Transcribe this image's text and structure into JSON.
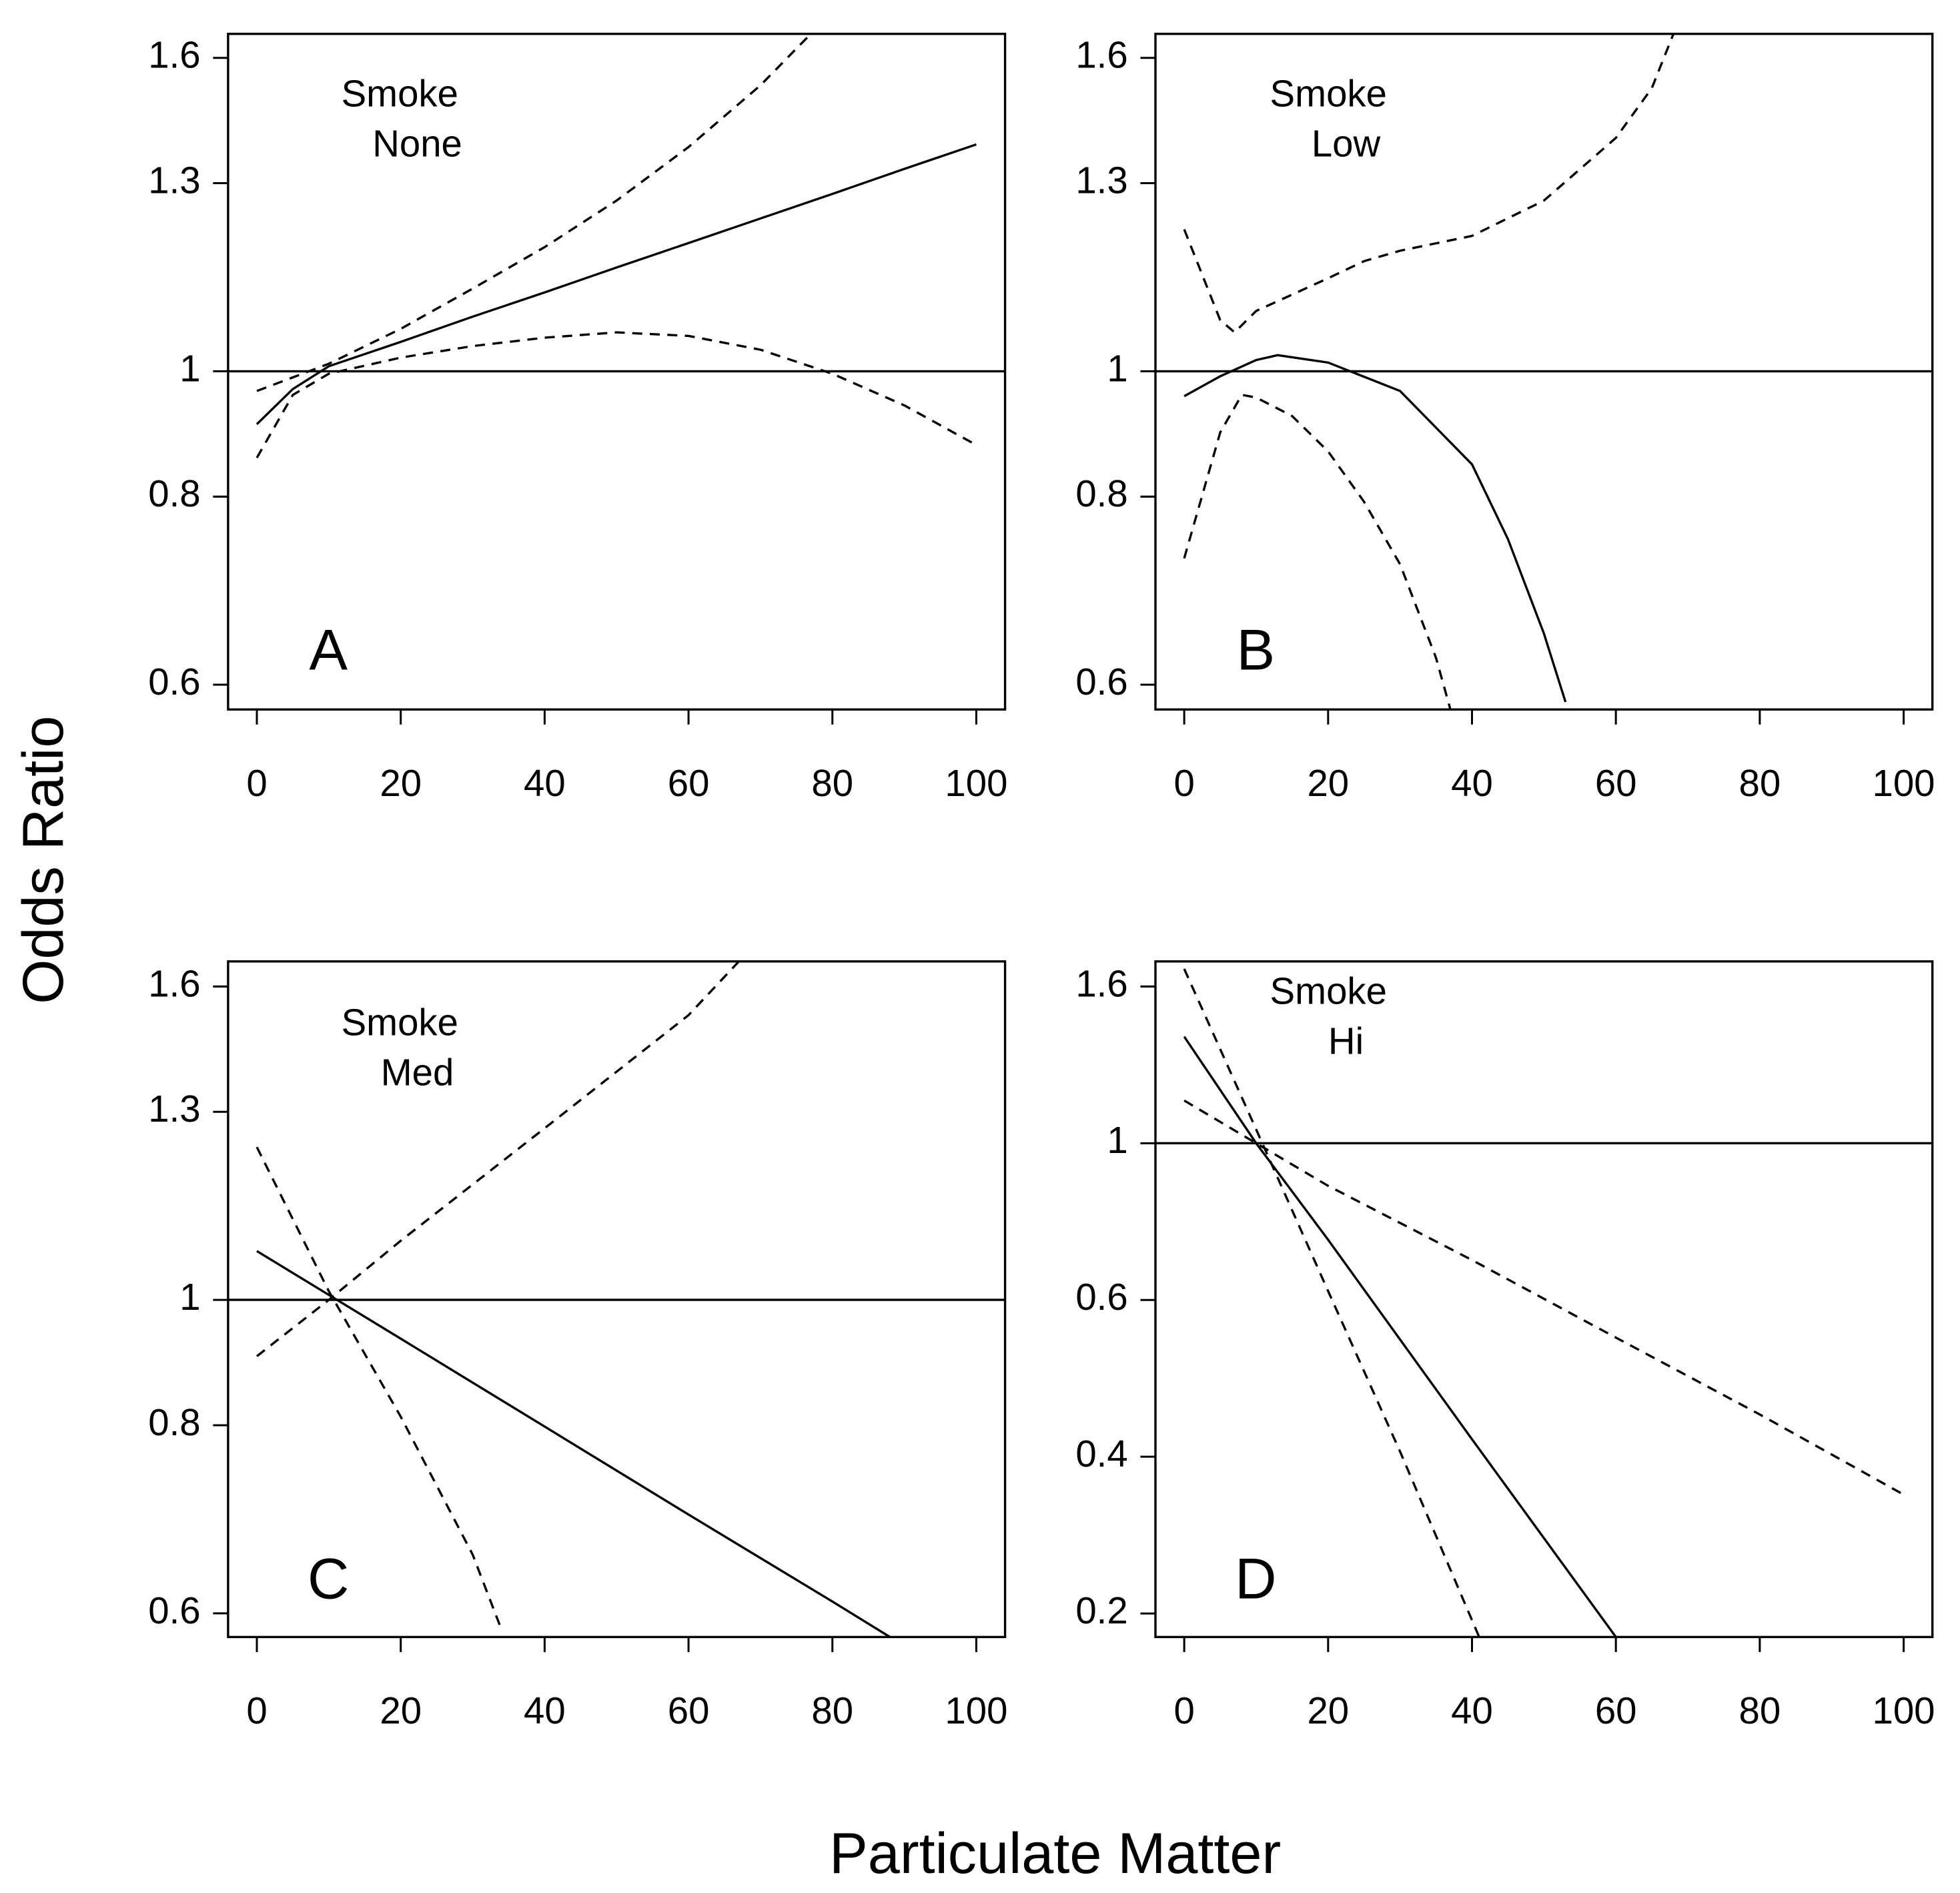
{
  "xlabel": "Particulate Matter",
  "ylabel": "Odds Ratio",
  "chart_data": [
    {
      "type": "line",
      "panel_label": "A",
      "annotations": [
        "Smoke",
        "None"
      ],
      "ylog": true,
      "reference_line": 1,
      "xlim": [
        -4,
        104
      ],
      "xticks": [
        0,
        20,
        40,
        60,
        80,
        100
      ],
      "ylim": [
        0.583,
        1.713
      ],
      "yticks": [
        {
          "value": 0.6065,
          "label": "0.6"
        },
        {
          "value": 0.8187,
          "label": "0.8"
        },
        1,
        {
          "value": 1.3499,
          "label": "1.3"
        },
        {
          "value": 1.6487,
          "label": "1.6"
        }
      ],
      "series": [
        {
          "style": "solid",
          "x": [
            0,
            5,
            10,
            20,
            30,
            40,
            50,
            60,
            70,
            80,
            90,
            100
          ],
          "values": [
            0.919,
            0.972,
            1.008,
            1.048,
            1.091,
            1.134,
            1.18,
            1.227,
            1.276,
            1.327,
            1.381,
            1.436
          ]
        },
        {
          "style": "dashed",
          "x": [
            0,
            10,
            20,
            30,
            40,
            50,
            60,
            70,
            77
          ],
          "values": [
            0.969,
            1.012,
            1.07,
            1.141,
            1.219,
            1.313,
            1.43,
            1.578,
            1.713
          ]
        },
        {
          "style": "dashed",
          "x": [
            0,
            5,
            10,
            20,
            30,
            40,
            50,
            60,
            70,
            80,
            90,
            100
          ],
          "values": [
            0.871,
            0.963,
            0.996,
            1.022,
            1.041,
            1.055,
            1.064,
            1.058,
            1.035,
            0.996,
            0.947,
            0.889
          ]
        }
      ]
    },
    {
      "type": "line",
      "panel_label": "B",
      "annotations": [
        "Smoke",
        "Low"
      ],
      "ylog": true,
      "reference_line": 1,
      "xlim": [
        -4,
        104
      ],
      "xticks": [
        0,
        20,
        40,
        60,
        80,
        100
      ],
      "ylim": [
        0.583,
        1.713
      ],
      "yticks": [
        {
          "value": 0.6065,
          "label": "0.6"
        },
        {
          "value": 0.8187,
          "label": "0.8"
        },
        1,
        {
          "value": 1.3499,
          "label": "1.3"
        },
        {
          "value": 1.6487,
          "label": "1.6"
        }
      ],
      "series": [
        {
          "style": "solid",
          "x": [
            0,
            5,
            10,
            13,
            20,
            30,
            40,
            45,
            50,
            53
          ],
          "values": [
            0.961,
            0.992,
            1.018,
            1.026,
            1.014,
            0.969,
            0.862,
            0.765,
            0.658,
            0.59
          ]
        },
        {
          "style": "dashed",
          "x": [
            0,
            5,
            7,
            10,
            20,
            25,
            30,
            40,
            50,
            60,
            65,
            68
          ],
          "values": [
            1.254,
            1.085,
            1.064,
            1.101,
            1.16,
            1.192,
            1.212,
            1.241,
            1.313,
            1.451,
            1.571,
            1.713
          ]
        },
        {
          "style": "dashed",
          "x": [
            0,
            5,
            8,
            10,
            15,
            20,
            25,
            30,
            35,
            37
          ],
          "values": [
            0.742,
            0.907,
            0.963,
            0.959,
            0.931,
            0.88,
            0.812,
            0.735,
            0.633,
            0.583
          ]
        }
      ]
    },
    {
      "type": "line",
      "panel_label": "C",
      "annotations": [
        "Smoke",
        "Med"
      ],
      "ylog": true,
      "reference_line": 1,
      "xlim": [
        -4,
        104
      ],
      "xticks": [
        0,
        20,
        40,
        60,
        80,
        100
      ],
      "ylim": [
        0.584,
        1.716
      ],
      "yticks": [
        {
          "value": 0.6065,
          "label": "0.6"
        },
        {
          "value": 0.8187,
          "label": "0.8"
        },
        1,
        {
          "value": 1.3499,
          "label": "1.3"
        },
        {
          "value": 1.6487,
          "label": "1.6"
        }
      ],
      "series": [
        {
          "style": "solid",
          "x": [
            0,
            20,
            40,
            60,
            80,
            88
          ],
          "values": [
            1.081,
            0.94,
            0.817,
            0.71,
            0.618,
            0.584
          ]
        },
        {
          "style": "dashed",
          "x": [
            0,
            10,
            20,
            40,
            60,
            67
          ],
          "values": [
            0.914,
            1.0,
            1.099,
            1.315,
            1.575,
            1.716
          ]
        },
        {
          "style": "dashed",
          "x": [
            0,
            10,
            20,
            30,
            34
          ],
          "values": [
            1.276,
            1.014,
            0.83,
            0.666,
            0.591
          ]
        }
      ]
    },
    {
      "type": "line",
      "panel_label": "D",
      "annotations": [
        "Smoke",
        "Hi"
      ],
      "ylog": true,
      "reference_line": 1,
      "xlim": [
        -4,
        104
      ],
      "xticks": [
        0,
        20,
        40,
        60,
        80,
        100
      ],
      "ylim": [
        0.207,
        1.786
      ],
      "yticks": [
        {
          "value": 0.2231,
          "label": "0.2"
        },
        {
          "value": 0.3679,
          "label": "0.4"
        },
        {
          "value": 0.6065,
          "label": "0.6"
        },
        1,
        {
          "value": 1.6487,
          "label": "1.6"
        }
      ],
      "series": [
        {
          "style": "solid",
          "x": [
            0,
            10,
            20,
            40,
            60
          ],
          "values": [
            1.405,
            1.0,
            0.735,
            0.389,
            0.207
          ]
        },
        {
          "style": "dashed",
          "x": [
            0,
            10,
            20,
            40,
            60,
            80,
            100
          ],
          "values": [
            1.146,
            1.0,
            0.873,
            0.689,
            0.538,
            0.421,
            0.326
          ]
        },
        {
          "style": "dashed",
          "x": [
            0,
            10,
            20,
            30,
            41
          ],
          "values": [
            1.744,
            1.045,
            0.624,
            0.374,
            0.207
          ]
        }
      ]
    }
  ]
}
